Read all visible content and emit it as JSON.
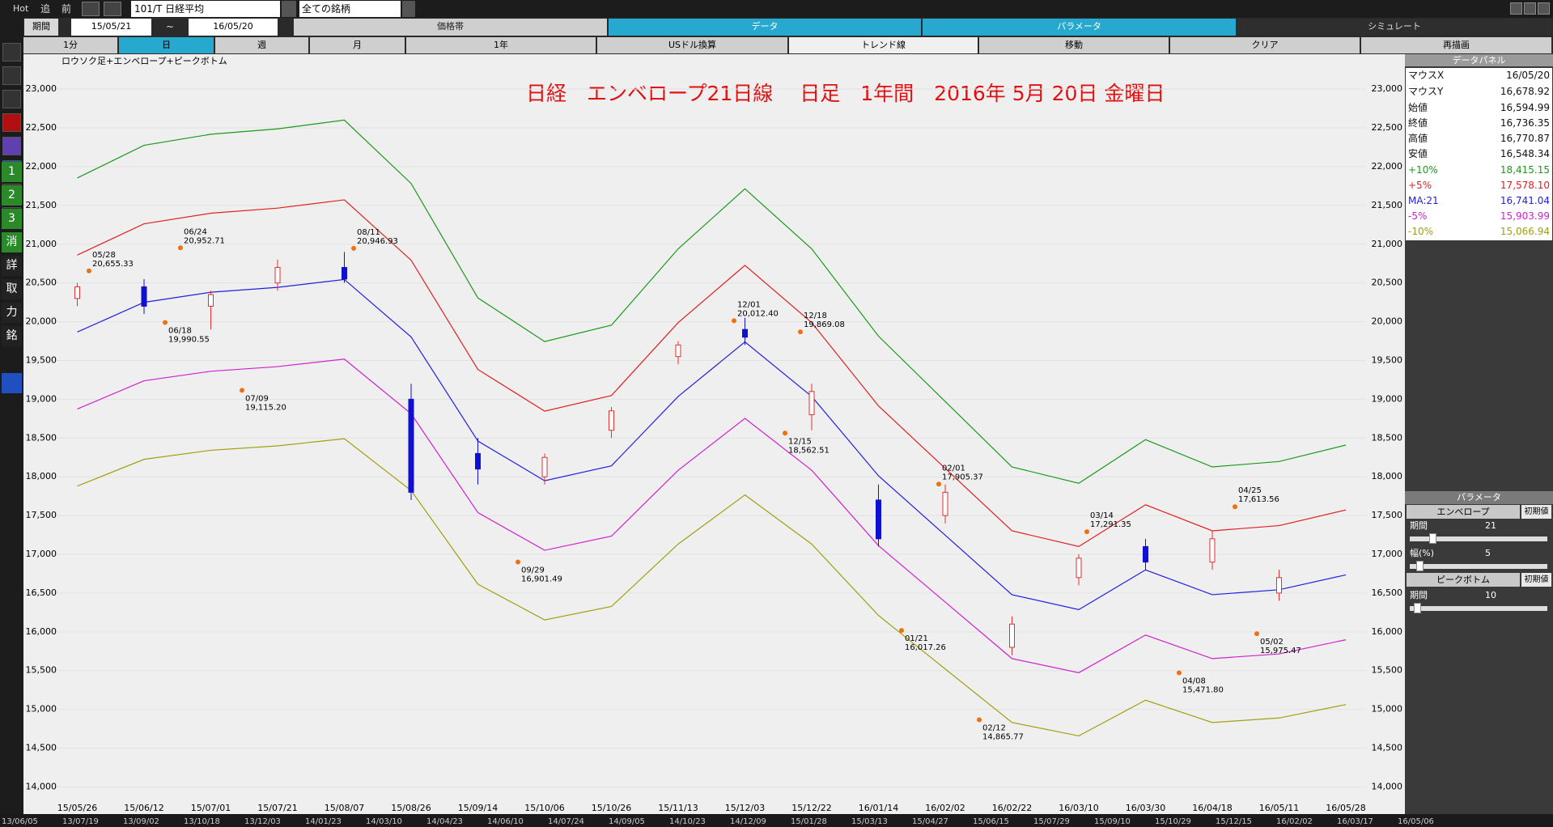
{
  "toolbar": {
    "hot": "Hot",
    "items": [
      "追",
      "前"
    ],
    "symbol": "101/T 日経平均",
    "universe": "全ての銘柄",
    "period_label": "期間",
    "from": "15/05/21",
    "tilde": "~",
    "to": "16/05/20",
    "tabs": [
      "価格帯",
      "データ",
      "パラメータ",
      "シミュレート"
    ],
    "buttons": [
      "1分",
      "日",
      "週",
      "月",
      "1年",
      "USドル換算",
      "トレンド線",
      "移動",
      "クリア",
      "再描画"
    ]
  },
  "sidebar": [
    "1",
    "2",
    "3",
    "消",
    "詳",
    "取",
    "力",
    "銘"
  ],
  "chart_data": {
    "type": "candlestick",
    "subtitle": "ロウソク足+エンベロープ+ピークボトム",
    "title": "日経　エンベロープ21日線　 日足　1年間　2016年 5月 20日 金曜日",
    "categories": [
      "15/05/26",
      "15/06/12",
      "15/07/01",
      "15/07/21",
      "15/08/07",
      "15/08/26",
      "15/09/14",
      "15/10/06",
      "15/10/26",
      "15/11/13",
      "15/12/03",
      "15/12/22",
      "16/01/14",
      "16/02/02",
      "16/02/22",
      "16/03/10",
      "16/03/30",
      "16/04/18",
      "16/05/11",
      "16/05/28"
    ],
    "ohlc": {
      "open": [
        20300,
        20450,
        20200,
        20500,
        20700,
        19000,
        18300,
        18000,
        18600,
        19550,
        19900,
        18800,
        17700,
        17500,
        15800,
        16700,
        17100,
        16900,
        16500,
        null
      ],
      "high": [
        20500,
        20550,
        20400,
        20800,
        20900,
        19200,
        18500,
        18300,
        18900,
        19750,
        20050,
        19200,
        17900,
        17900,
        16200,
        17000,
        17200,
        17300,
        16800,
        null
      ],
      "low": [
        20200,
        20100,
        19900,
        20400,
        20500,
        17700,
        17900,
        17900,
        18500,
        19450,
        19700,
        18600,
        17100,
        17400,
        15700,
        16600,
        16800,
        16800,
        16400,
        null
      ],
      "close": [
        20450,
        20200,
        20350,
        20700,
        20550,
        17800,
        18100,
        18250,
        18850,
        19700,
        19800,
        19100,
        17200,
        17800,
        16100,
        16950,
        16900,
        17200,
        16700,
        null
      ],
      "up_color": "#e03030",
      "down_color": "#1010d0"
    },
    "series": [
      {
        "name": "+10%",
        "color": "#1a9a1a",
        "values": [
          21854,
          22275,
          22418,
          22487,
          22600,
          21783,
          20307,
          19744,
          19955,
          20940,
          21714,
          20940,
          19814,
          18971,
          18127,
          17916,
          18479,
          18127,
          18197,
          18409
        ]
      },
      {
        "name": "+5%",
        "color": "#e02020",
        "values": [
          20860,
          21263,
          21399,
          21465,
          21572,
          20793,
          19384,
          18846,
          19048,
          19988,
          20727,
          19988,
          18914,
          18108,
          17303,
          17101,
          17639,
          17303,
          17370,
          17572
        ]
      },
      {
        "name": "MA:21",
        "color": "#2020e0",
        "values": [
          19867,
          20250,
          20380,
          20443,
          20545,
          19803,
          18461,
          17949,
          18141,
          19036,
          19740,
          19036,
          18013,
          17246,
          16479,
          16287,
          16799,
          16479,
          16543,
          16735
        ]
      },
      {
        "name": "-5%",
        "color": "#d020d0",
        "values": [
          18874,
          19238,
          19361,
          19421,
          19518,
          18813,
          17538,
          17052,
          17234,
          18084,
          18753,
          18084,
          17112,
          16384,
          15655,
          15473,
          15959,
          15655,
          15716,
          15898
        ]
      },
      {
        "name": "-10%",
        "color": "#a0a010",
        "values": [
          17880,
          18225,
          18342,
          18399,
          18491,
          17823,
          16615,
          16154,
          16327,
          17132,
          17766,
          17132,
          16212,
          15521,
          14831,
          14658,
          15119,
          14831,
          14889,
          15062
        ]
      }
    ],
    "annotations": [
      {
        "date": "05/28",
        "value": 20655.33,
        "label": "20,655.33"
      },
      {
        "date": "06/24",
        "value": 20952.71,
        "label": "20,952.71"
      },
      {
        "date": "06/18",
        "value": 19990.55,
        "label": "19,990.55"
      },
      {
        "date": "07/09",
        "value": 19115.2,
        "label": "19,115.20"
      },
      {
        "date": "08/11",
        "value": 20946.93,
        "label": "20,946.93"
      },
      {
        "date": "09/29",
        "value": 16901.49,
        "label": "16,901.49"
      },
      {
        "date": "12/01",
        "value": 20012.4,
        "label": "20,012.40"
      },
      {
        "date": "12/18",
        "value": 19869.08,
        "label": "19,869.08"
      },
      {
        "date": "12/15",
        "value": 18562.51,
        "label": "18,562.51"
      },
      {
        "date": "01/21",
        "value": 16017.26,
        "label": "16,017.26"
      },
      {
        "date": "02/01",
        "value": 17905.37,
        "label": "17,905.37"
      },
      {
        "date": "02/12",
        "value": 14865.77,
        "label": "14,865.77"
      },
      {
        "date": "03/14",
        "value": 17291.35,
        "label": "17,291.35"
      },
      {
        "date": "04/08",
        "value": 15471.8,
        "label": "15,471.80"
      },
      {
        "date": "04/25",
        "value": 17613.56,
        "label": "17,613.56"
      },
      {
        "date": "05/02",
        "value": 15975.47,
        "label": "15,975.47"
      }
    ],
    "ylim": [
      13650,
      23450
    ],
    "yticks": [
      {
        "value": 14000,
        "label": "14,000"
      },
      {
        "value": 14500,
        "label": "14,500"
      },
      {
        "value": 15000,
        "label": "15,000"
      },
      {
        "value": 15500,
        "label": "15,500"
      },
      {
        "value": 16000,
        "label": "16,000"
      },
      {
        "value": 16500,
        "label": "16,500"
      },
      {
        "value": 17000,
        "label": "17,000"
      },
      {
        "value": 17500,
        "label": "17,500"
      },
      {
        "value": 18000,
        "label": "18,000"
      },
      {
        "value": 18500,
        "label": "18,500"
      },
      {
        "value": 19000,
        "label": "19,000"
      },
      {
        "value": 19500,
        "label": "19,500"
      },
      {
        "value": 20000,
        "label": "20,000"
      },
      {
        "value": 20500,
        "label": "20,500"
      },
      {
        "value": 21000,
        "label": "21,000"
      },
      {
        "value": 21500,
        "label": "21,500"
      },
      {
        "value": 22000,
        "label": "22,000"
      },
      {
        "value": 22500,
        "label": "22,500"
      },
      {
        "value": 23000,
        "label": "23,000"
      }
    ],
    "grid": true
  },
  "data_panel": {
    "title": "データパネル",
    "rows": [
      {
        "label": "マウスX",
        "value": "16/05/20"
      },
      {
        "label": "マウスY",
        "value": "16,678.92"
      },
      {
        "label": "始値",
        "value": "16,594.99"
      },
      {
        "label": "終値",
        "value": "16,736.35"
      },
      {
        "label": "高値",
        "value": "16,770.87"
      },
      {
        "label": "安値",
        "value": "16,548.34"
      },
      {
        "label": "+10%",
        "value": "18,415.15",
        "color": "#1a9a1a"
      },
      {
        "label": "+5%",
        "value": "17,578.10",
        "color": "#e02020"
      },
      {
        "label": "MA:21",
        "value": "16,741.04",
        "color": "#2020e0"
      },
      {
        "label": "-5%",
        "value": "15,903.99",
        "color": "#d020d0"
      },
      {
        "label": "-10%",
        "value": "15,066.94",
        "color": "#a0a010"
      }
    ]
  },
  "parameter_panel": {
    "title": "パラメータ",
    "envelope": "エンベロープ",
    "reset": "初期値",
    "period_label": "期間",
    "period": "21",
    "width_label": "幅(%)",
    "width": "5",
    "peak_bottom": "ピークボトム",
    "reset2": "初期値",
    "pb_period_label": "期間",
    "pb_period": "10"
  },
  "bottom_dates": [
    "13/06/05",
    "13/07/19",
    "13/09/02",
    "13/10/18",
    "13/12/03",
    "14/01/23",
    "14/03/10",
    "14/04/23",
    "14/06/10",
    "14/07/24",
    "14/09/05",
    "14/10/23",
    "14/12/09",
    "15/01/28",
    "15/03/13",
    "15/04/27",
    "15/06/15",
    "15/07/29",
    "15/09/10",
    "15/10/29",
    "15/12/15",
    "16/02/02",
    "16/03/17",
    "16/05/06"
  ]
}
